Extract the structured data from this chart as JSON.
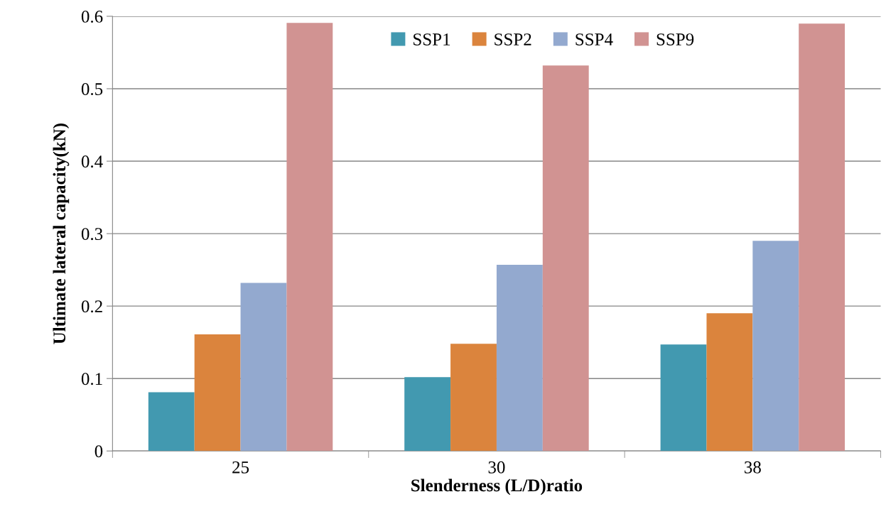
{
  "chart_data": {
    "type": "bar",
    "xlabel": "Slenderness (L/D)ratio",
    "ylabel": "Ultimate lateral capacity(kN)",
    "categories": [
      "25",
      "30",
      "38"
    ],
    "series": [
      {
        "name": "SSP1",
        "color": "#4299b0",
        "values": [
          0.081,
          0.102,
          0.147
        ]
      },
      {
        "name": "SSP2",
        "color": "#db843d",
        "values": [
          0.161,
          0.148,
          0.19
        ]
      },
      {
        "name": "SSP4",
        "color": "#93a9cf",
        "values": [
          0.232,
          0.257,
          0.29
        ]
      },
      {
        "name": "SSP9",
        "color": "#d19392",
        "values": [
          0.591,
          0.532,
          0.59
        ]
      }
    ],
    "ylim": [
      0,
      0.6
    ],
    "yticks": [
      {
        "value": 0,
        "label": "0"
      },
      0.1,
      0.2,
      0.3,
      0.4,
      0.5,
      0.6
    ],
    "grid": "y",
    "legend": "top"
  }
}
